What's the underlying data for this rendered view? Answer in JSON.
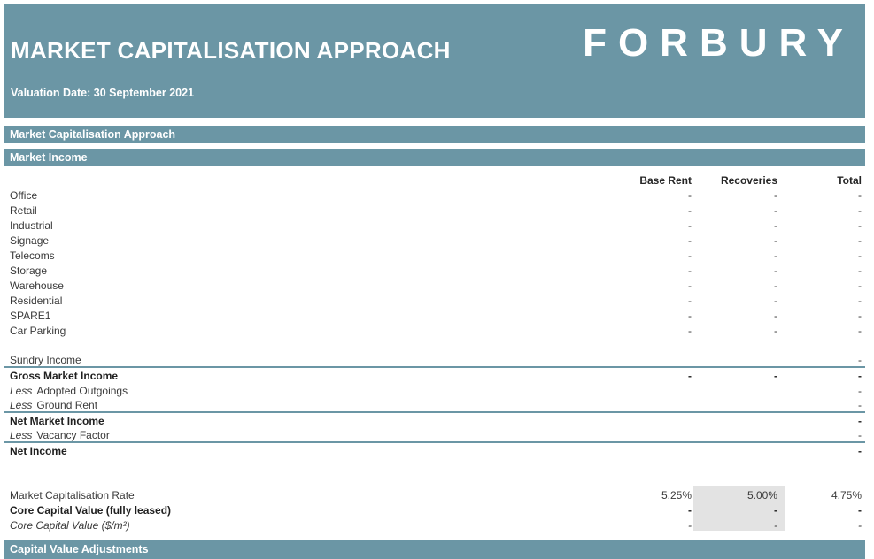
{
  "colors": {
    "accent_teal": "#6b96a5",
    "input_cell_bg": "#e3e3e3",
    "body_text": "#3a3a3a",
    "header_text": "#ffffff"
  },
  "header": {
    "title": "MARKET CAPITALISATION APPROACH",
    "logo": "FORBURY",
    "valuation_date": "Valuation Date: 30 September 2021"
  },
  "section_bars": {
    "approach": "Market Capitalisation Approach",
    "market_income": "Market Income",
    "capital_value_adjustments": "Capital Value Adjustments"
  },
  "income_table": {
    "columns": {
      "base_rent": "Base Rent",
      "recoveries": "Recoveries",
      "total": "Total"
    },
    "rows": [
      {
        "label": "Office",
        "base_rent": "-",
        "recoveries": "-",
        "total": "-"
      },
      {
        "label": "Retail",
        "base_rent": "-",
        "recoveries": "-",
        "total": "-"
      },
      {
        "label": "Industrial",
        "base_rent": "-",
        "recoveries": "-",
        "total": "-"
      },
      {
        "label": "Signage",
        "base_rent": "-",
        "recoveries": "-",
        "total": "-"
      },
      {
        "label": "Telecoms",
        "base_rent": "-",
        "recoveries": "-",
        "total": "-"
      },
      {
        "label": "Storage",
        "base_rent": "-",
        "recoveries": "-",
        "total": "-"
      },
      {
        "label": "Warehouse",
        "base_rent": "-",
        "recoveries": "-",
        "total": "-"
      },
      {
        "label": "Residential",
        "base_rent": "-",
        "recoveries": "-",
        "total": "-"
      },
      {
        "label": "SPARE1",
        "base_rent": "-",
        "recoveries": "-",
        "total": "-"
      },
      {
        "label": "Car Parking",
        "base_rent": "-",
        "recoveries": "-",
        "total": "-"
      },
      {
        "label": "Sundry Income",
        "total": "-"
      },
      {
        "label": "Gross Market Income",
        "base_rent": "-",
        "recoveries": "-",
        "total": "-"
      },
      {
        "prefix": "Less",
        "label": "Adopted Outgoings",
        "total": "-"
      },
      {
        "prefix": "Less",
        "label": "Ground Rent",
        "total": "-"
      },
      {
        "label": "Net Market Income",
        "total": "-"
      },
      {
        "prefix": "Less",
        "label": "Vacancy Factor",
        "total": "-"
      },
      {
        "label": "Net Income",
        "total": "-"
      }
    ]
  },
  "capitalisation": {
    "rows": [
      {
        "label": "Market Capitalisation Rate",
        "base_rent": "5.25%",
        "recoveries": "5.00%",
        "total": "4.75%"
      },
      {
        "label": "Core Capital Value (fully leased)",
        "base_rent": "-",
        "recoveries": "-",
        "total": "-"
      },
      {
        "label": "Core Capital Value ($/m²)",
        "base_rent": "-",
        "recoveries": "-",
        "total": "-"
      }
    ]
  }
}
